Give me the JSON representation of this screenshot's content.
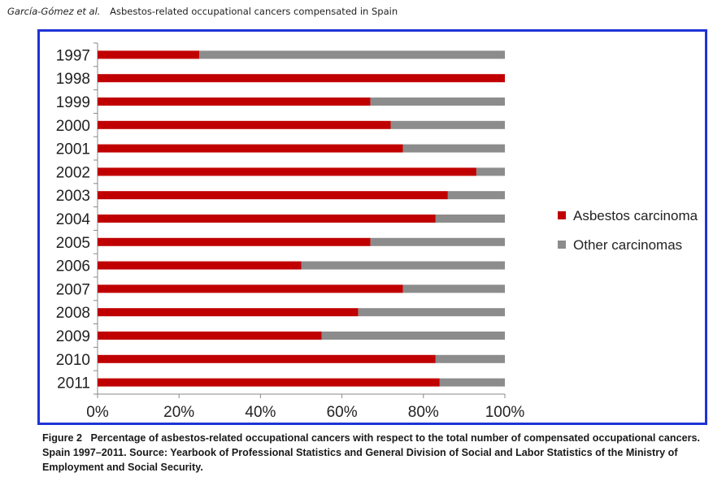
{
  "header": {
    "authors": "García-Gómez et al.",
    "title": "Asbestos-related occupational cancers compensated in Spain"
  },
  "caption": {
    "label": "Figure 2",
    "text": "Percentage of asbestos-related occupational cancers with respect to the total number of compensated occupational cancers. Spain 1997–2011. Source: Yearbook of Professional Statistics and General Division of Social and Labor Statistics of the Ministry of Employment and Social Security."
  },
  "chart_data": {
    "type": "bar",
    "orientation": "horizontal",
    "stacked": true,
    "categories": [
      "1997",
      "1998",
      "1999",
      "2000",
      "2001",
      "2002",
      "2003",
      "2004",
      "2005",
      "2006",
      "2007",
      "2008",
      "2009",
      "2010",
      "2011"
    ],
    "series": [
      {
        "name": "Asbestos carcinoma",
        "color": "#c00000",
        "values": [
          25,
          100,
          67,
          72,
          75,
          93,
          86,
          83,
          67,
          50,
          75,
          64,
          55,
          83,
          84
        ]
      },
      {
        "name": "Other carcinomas",
        "color": "#8c8c8c",
        "values": [
          75,
          0,
          33,
          28,
          25,
          7,
          14,
          17,
          33,
          50,
          25,
          36,
          45,
          17,
          16
        ]
      }
    ],
    "xlim": [
      0,
      100
    ],
    "xticks": [
      "0%",
      "20%",
      "40%",
      "60%",
      "80%",
      "100%"
    ],
    "legend_position": "right",
    "grid": false
  }
}
